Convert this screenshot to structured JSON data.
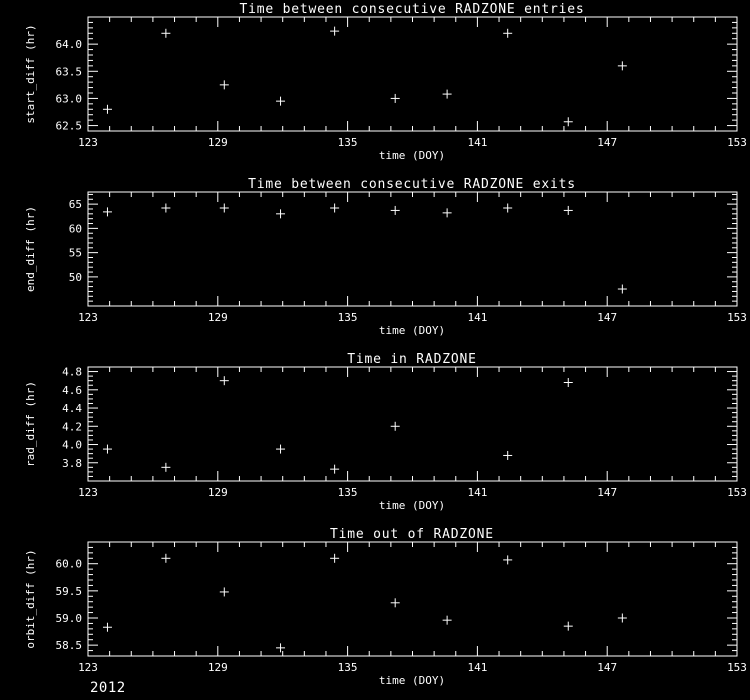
{
  "footer": {
    "year": "2012"
  },
  "chart_data": [
    {
      "type": "scatter",
      "title": "Time between consecutive RADZONE entries",
      "xlabel": "time (DOY)",
      "ylabel": "start_diff (hr)",
      "marker": "plus",
      "grid": false,
      "legend": "none",
      "xlim": [
        123,
        153
      ],
      "ylim": [
        62.4,
        64.5
      ],
      "xticks": [
        123,
        129,
        135,
        141,
        147,
        153
      ],
      "xtick_labels": [
        "123",
        "129",
        "135",
        "141",
        "147",
        "153"
      ],
      "xminor": 1,
      "yticks": [
        62.5,
        63.0,
        63.5,
        64.0
      ],
      "ytick_labels": [
        "62.5",
        "63.0",
        "63.5",
        "64.0"
      ],
      "yminor": 0.1,
      "points": [
        [
          123.9,
          62.8
        ],
        [
          126.6,
          64.2
        ],
        [
          129.3,
          63.25
        ],
        [
          131.9,
          62.95
        ],
        [
          134.4,
          64.24
        ],
        [
          137.2,
          63.0
        ],
        [
          139.6,
          63.08
        ],
        [
          142.4,
          64.2
        ],
        [
          145.2,
          62.57
        ],
        [
          147.7,
          63.6
        ]
      ]
    },
    {
      "type": "scatter",
      "title": "Time between consecutive RADZONE exits",
      "xlabel": "time (DOY)",
      "ylabel": "end_diff (hr)",
      "marker": "plus",
      "grid": false,
      "legend": "none",
      "xlim": [
        123,
        153
      ],
      "ylim": [
        44,
        67.5
      ],
      "xticks": [
        123,
        129,
        135,
        141,
        147,
        153
      ],
      "xtick_labels": [
        "123",
        "129",
        "135",
        "141",
        "147",
        "153"
      ],
      "xminor": 1,
      "yticks": [
        50,
        55,
        60,
        65
      ],
      "ytick_labels": [
        "50",
        "55",
        "60",
        "65"
      ],
      "yminor": 1,
      "points": [
        [
          123.9,
          63.4
        ],
        [
          126.6,
          64.2
        ],
        [
          129.3,
          64.2
        ],
        [
          131.9,
          63.0
        ],
        [
          134.4,
          64.2
        ],
        [
          137.2,
          63.7
        ],
        [
          139.6,
          63.2
        ],
        [
          142.4,
          64.2
        ],
        [
          145.2,
          63.7
        ],
        [
          147.7,
          47.5
        ]
      ]
    },
    {
      "type": "scatter",
      "title": "Time in RADZONE",
      "xlabel": "time (DOY)",
      "ylabel": "rad_diff (hr)",
      "marker": "plus",
      "grid": false,
      "legend": "none",
      "xlim": [
        123,
        153
      ],
      "ylim": [
        3.6,
        4.85
      ],
      "xticks": [
        123,
        129,
        135,
        141,
        147,
        153
      ],
      "xtick_labels": [
        "123",
        "129",
        "135",
        "141",
        "147",
        "153"
      ],
      "xminor": 1,
      "yticks": [
        3.8,
        4.0,
        4.2,
        4.4,
        4.6,
        4.8
      ],
      "ytick_labels": [
        "3.8",
        "4.0",
        "4.2",
        "4.4",
        "4.6",
        "4.8"
      ],
      "yminor": 0.05,
      "points": [
        [
          123.9,
          3.95
        ],
        [
          126.6,
          3.75
        ],
        [
          129.3,
          4.7
        ],
        [
          131.9,
          3.95
        ],
        [
          134.4,
          3.73
        ],
        [
          137.2,
          4.2
        ],
        [
          142.4,
          3.88
        ],
        [
          145.2,
          4.68
        ]
      ]
    },
    {
      "type": "scatter",
      "title": "Time out of RADZONE",
      "xlabel": "time (DOY)",
      "ylabel": "orbit_diff (hr)",
      "marker": "plus",
      "grid": false,
      "legend": "none",
      "xlim": [
        123,
        153
      ],
      "ylim": [
        58.3,
        60.4
      ],
      "xticks": [
        123,
        129,
        135,
        141,
        147,
        153
      ],
      "xtick_labels": [
        "123",
        "129",
        "135",
        "141",
        "147",
        "153"
      ],
      "xminor": 1,
      "yticks": [
        58.5,
        59.0,
        59.5,
        60.0
      ],
      "ytick_labels": [
        "58.5",
        "59.0",
        "59.5",
        "60.0"
      ],
      "yminor": 0.1,
      "points": [
        [
          123.9,
          58.83
        ],
        [
          126.6,
          60.1
        ],
        [
          129.3,
          59.48
        ],
        [
          131.9,
          58.45
        ],
        [
          134.4,
          60.1
        ],
        [
          137.2,
          59.28
        ],
        [
          139.6,
          58.96
        ],
        [
          142.4,
          60.07
        ],
        [
          145.2,
          58.85
        ],
        [
          147.7,
          59.0
        ]
      ]
    }
  ]
}
